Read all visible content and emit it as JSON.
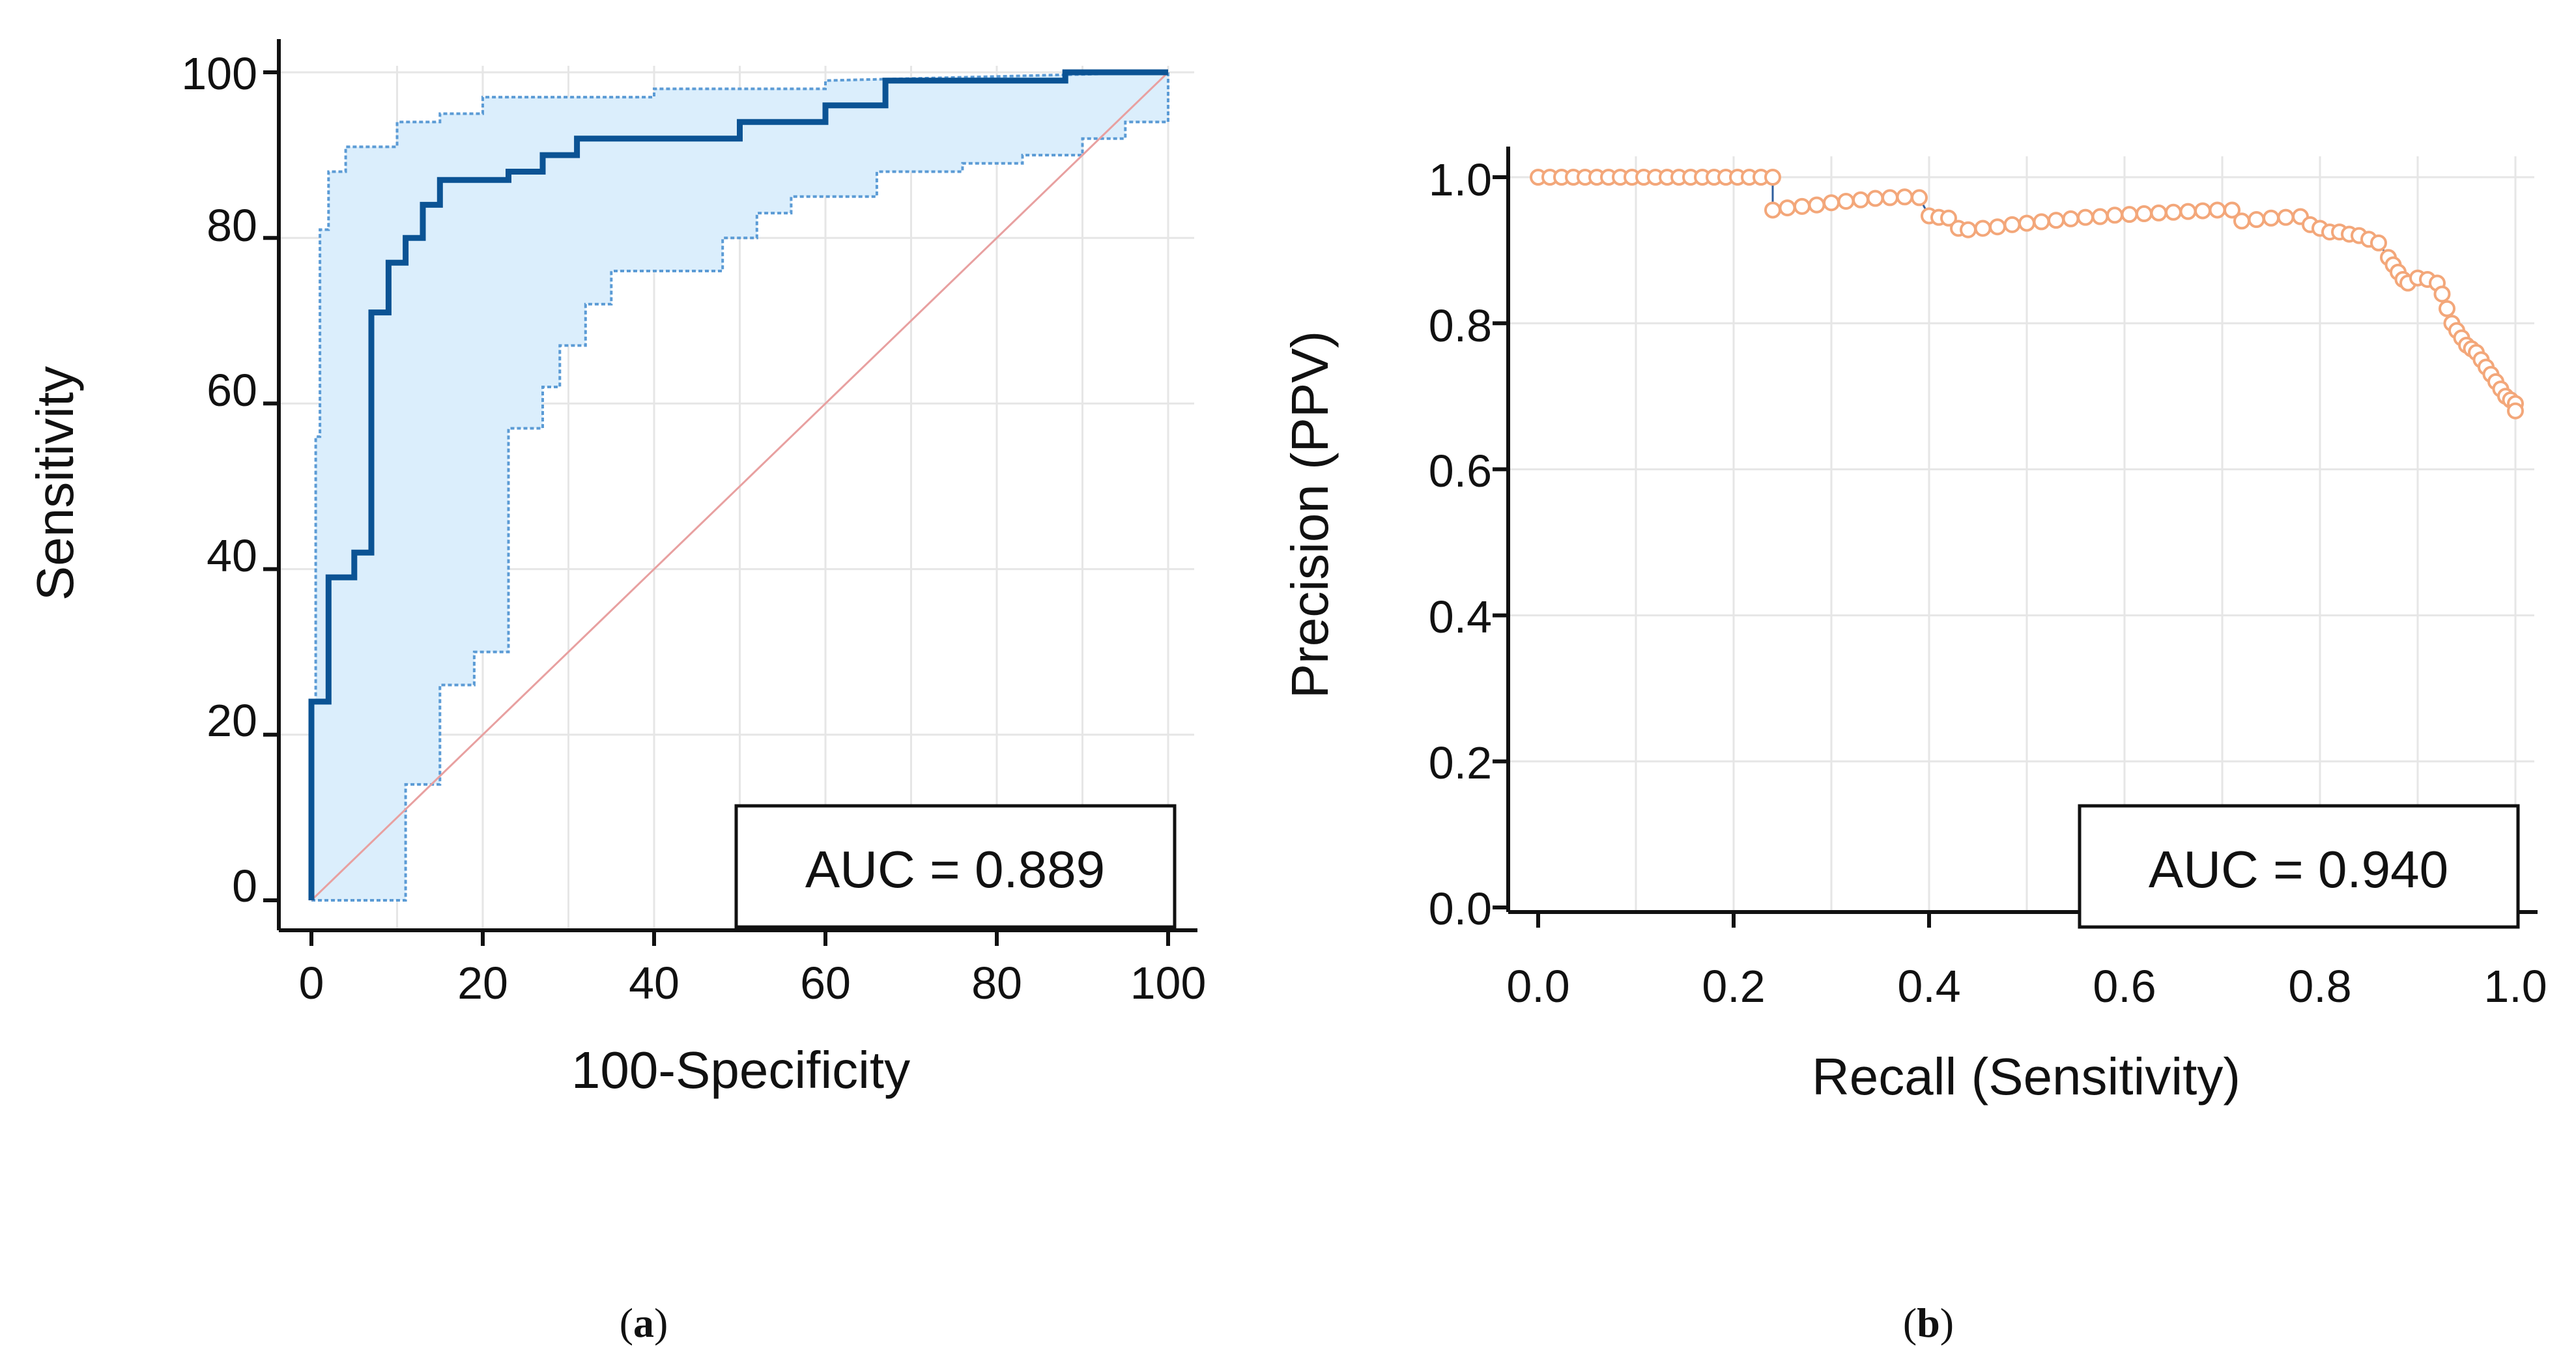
{
  "chart_data": [
    {
      "type": "line",
      "panel_label": "a",
      "xlabel": "100-Specificity",
      "ylabel": "Sensitivity",
      "xlim": [
        0,
        100
      ],
      "ylim": [
        0,
        100
      ],
      "xticks": [
        "0",
        "20",
        "40",
        "60",
        "80",
        "100"
      ],
      "yticks": [
        "0",
        "20",
        "40",
        "60",
        "80",
        "100"
      ],
      "grid": true,
      "annotation": "AUC = 0.889",
      "colors": {
        "roc": "#0b5394",
        "band": "#dbeefc",
        "band_edge": "#5b9bd5",
        "diagonal": "#e8a0a0",
        "grid": "#e6e6e6"
      },
      "series": [
        {
          "name": "ROC curve",
          "x": [
            0,
            0,
            2,
            2,
            5,
            5,
            7,
            7,
            9,
            9,
            11,
            11,
            13,
            13,
            15,
            15,
            17,
            17,
            23,
            23,
            27,
            27,
            31,
            31,
            35,
            35,
            50,
            50,
            60,
            60,
            67,
            67,
            88,
            88,
            100
          ],
          "y": [
            0,
            24,
            24,
            39,
            39,
            42,
            42,
            71,
            71,
            77,
            77,
            80,
            80,
            84,
            84,
            87,
            87,
            87,
            87,
            88,
            88,
            90,
            90,
            92,
            92,
            92,
            92,
            94,
            94,
            96,
            96,
            99,
            99,
            100,
            100
          ]
        },
        {
          "name": "Upper confidence bound",
          "x": [
            0,
            0,
            0.5,
            0.5,
            1,
            1,
            2,
            2,
            4,
            4,
            10,
            10,
            15,
            15,
            20,
            20,
            40,
            40,
            60,
            60,
            100
          ],
          "y": [
            0,
            24,
            24,
            56,
            56,
            81,
            81,
            88,
            88,
            91,
            91,
            94,
            94,
            95,
            95,
            97,
            97,
            98,
            98,
            99,
            100
          ]
        },
        {
          "name": "Lower confidence bound",
          "x": [
            0,
            11,
            11,
            15,
            15,
            19,
            19,
            23,
            23,
            27,
            27,
            29,
            29,
            32,
            32,
            35,
            35,
            48,
            48,
            52,
            52,
            56,
            56,
            66,
            66,
            76,
            76,
            83,
            83,
            90,
            90,
            95,
            95,
            100,
            100
          ],
          "y": [
            0,
            0,
            14,
            14,
            26,
            26,
            30,
            30,
            57,
            57,
            62,
            62,
            67,
            67,
            72,
            72,
            76,
            76,
            80,
            80,
            83,
            83,
            85,
            85,
            88,
            88,
            89,
            89,
            90,
            90,
            92,
            92,
            94,
            94,
            100
          ]
        },
        {
          "name": "Reference line",
          "x": [
            0,
            100
          ],
          "y": [
            0,
            100
          ]
        }
      ]
    },
    {
      "type": "scatter",
      "panel_label": "b",
      "xlabel": "Recall (Sensitivity)",
      "ylabel": "Precision (PPV)",
      "xlim": [
        0,
        1
      ],
      "ylim": [
        0,
        1
      ],
      "xticks": [
        "0.0",
        "0.2",
        "0.4",
        "0.6",
        "0.8",
        "1.0"
      ],
      "yticks": [
        "0.0",
        "0.2",
        "0.4",
        "0.6",
        "0.8",
        "1.0"
      ],
      "grid": true,
      "annotation": "AUC = 0.940",
      "colors": {
        "marker": "#f3a77a",
        "step": "#2f5f9e",
        "grid": "#e6e6e6"
      },
      "series": [
        {
          "name": "Precision-recall points",
          "x": [
            0.0,
            0.012,
            0.024,
            0.036,
            0.048,
            0.06,
            0.072,
            0.084,
            0.096,
            0.108,
            0.12,
            0.132,
            0.144,
            0.156,
            0.168,
            0.18,
            0.192,
            0.204,
            0.216,
            0.228,
            0.24,
            0.24,
            0.255,
            0.27,
            0.285,
            0.3,
            0.315,
            0.33,
            0.345,
            0.36,
            0.375,
            0.39,
            0.4,
            0.41,
            0.42,
            0.43,
            0.44,
            0.455,
            0.47,
            0.485,
            0.5,
            0.515,
            0.53,
            0.545,
            0.56,
            0.575,
            0.59,
            0.605,
            0.62,
            0.635,
            0.65,
            0.665,
            0.68,
            0.695,
            0.71,
            0.72,
            0.735,
            0.75,
            0.765,
            0.78,
            0.79,
            0.8,
            0.81,
            0.82,
            0.83,
            0.84,
            0.85,
            0.86,
            0.87,
            0.875,
            0.88,
            0.885,
            0.89,
            0.9,
            0.91,
            0.92,
            0.925,
            0.93,
            0.935,
            0.94,
            0.945,
            0.95,
            0.955,
            0.96,
            0.965,
            0.97,
            0.975,
            0.98,
            0.985,
            0.99,
            0.995,
            1.0,
            1.0
          ],
          "y": [
            1.0,
            1.0,
            1.0,
            1.0,
            1.0,
            1.0,
            1.0,
            1.0,
            1.0,
            1.0,
            1.0,
            1.0,
            1.0,
            1.0,
            1.0,
            1.0,
            1.0,
            1.0,
            1.0,
            1.0,
            1.0,
            0.955,
            0.958,
            0.96,
            0.962,
            0.965,
            0.967,
            0.969,
            0.971,
            0.972,
            0.973,
            0.972,
            0.947,
            0.945,
            0.944,
            0.93,
            0.928,
            0.93,
            0.932,
            0.935,
            0.937,
            0.939,
            0.941,
            0.943,
            0.945,
            0.946,
            0.948,
            0.949,
            0.95,
            0.951,
            0.952,
            0.953,
            0.954,
            0.955,
            0.955,
            0.94,
            0.942,
            0.944,
            0.945,
            0.946,
            0.935,
            0.93,
            0.925,
            0.925,
            0.922,
            0.92,
            0.915,
            0.91,
            0.89,
            0.88,
            0.87,
            0.86,
            0.855,
            0.862,
            0.86,
            0.855,
            0.84,
            0.82,
            0.8,
            0.79,
            0.78,
            0.77,
            0.765,
            0.76,
            0.75,
            0.74,
            0.73,
            0.72,
            0.71,
            0.7,
            0.695,
            0.69,
            0.68
          ]
        }
      ]
    }
  ],
  "captions": [
    {
      "open": "(",
      "label": "a",
      "close": ")"
    },
    {
      "open": "(",
      "label": "b",
      "close": ")"
    }
  ]
}
